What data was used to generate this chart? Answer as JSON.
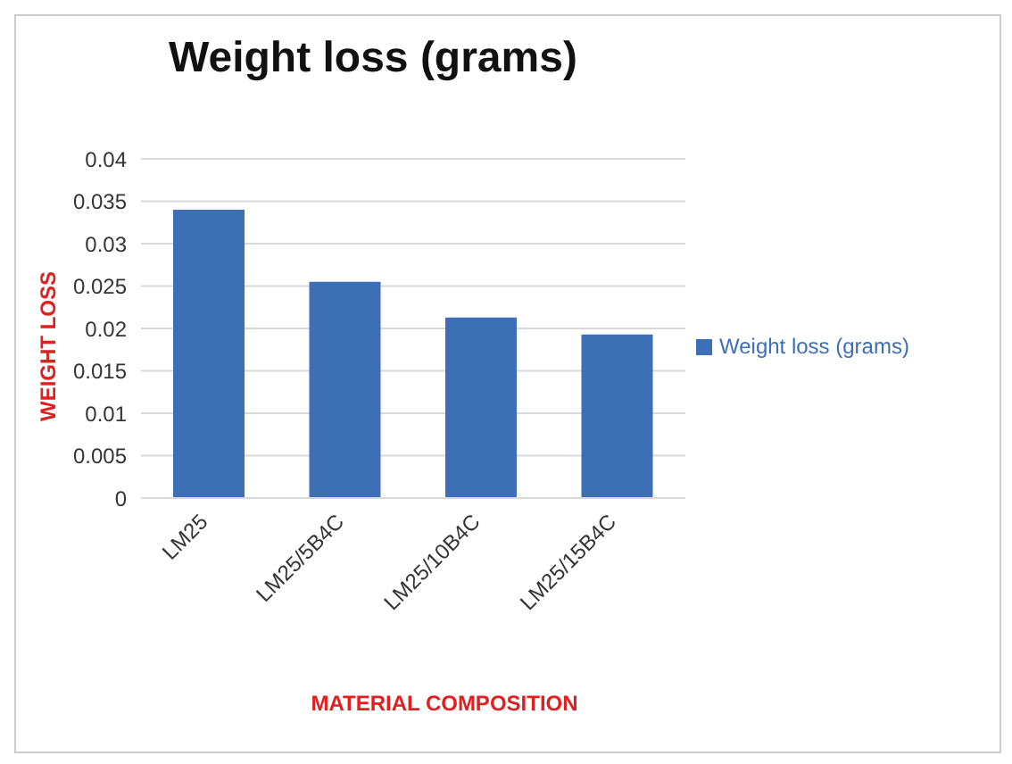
{
  "chart_data": {
    "type": "bar",
    "title": "Weight loss (grams)",
    "xlabel": "MATERIAL COMPOSITION",
    "ylabel": "WEIGHT LOSS",
    "categories": [
      "LM25",
      "LM25/5B4C",
      "LM25/10B4C",
      "LM25/15B4C"
    ],
    "series": [
      {
        "name": "Weight loss (grams)",
        "color": "#3d6fb6",
        "values": [
          0.034,
          0.0255,
          0.0213,
          0.0193
        ]
      }
    ],
    "ylim": [
      0,
      0.04
    ],
    "yticks": [
      0,
      0.005,
      0.01,
      0.015,
      0.02,
      0.025,
      0.03,
      0.035,
      0.04
    ],
    "grid": "y",
    "legend": "right"
  }
}
